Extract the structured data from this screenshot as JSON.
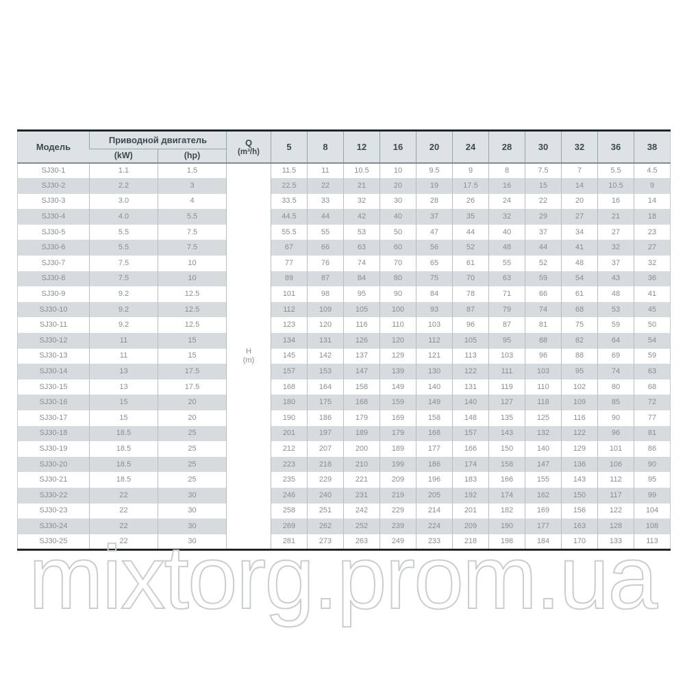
{
  "table": {
    "header": {
      "model": "Модель",
      "drive_motor": "Приводной двигатель",
      "kw": "(kW)",
      "hp": "(hp)",
      "q_line1": "Q",
      "q_line2": "(m³/h)",
      "flow_columns": [
        "5",
        "8",
        "12",
        "16",
        "20",
        "24",
        "28",
        "30",
        "32",
        "36",
        "38"
      ]
    },
    "h_column": {
      "line1": "H",
      "line2": "(m)"
    },
    "rows": [
      {
        "model": "SJ30-1",
        "kw": "1.1",
        "hp": "1.5",
        "head": [
          "11.5",
          "11",
          "10.5",
          "10",
          "9.5",
          "9",
          "8",
          "7.5",
          "7",
          "5.5",
          "4.5"
        ]
      },
      {
        "model": "SJ30-2",
        "kw": "2.2",
        "hp": "3",
        "head": [
          "22.5",
          "22",
          "21",
          "20",
          "19",
          "17.5",
          "16",
          "15",
          "14",
          "10.5",
          "9"
        ]
      },
      {
        "model": "SJ30-3",
        "kw": "3.0",
        "hp": "4",
        "head": [
          "33.5",
          "33",
          "32",
          "30",
          "28",
          "26",
          "24",
          "22",
          "20",
          "16",
          "14"
        ]
      },
      {
        "model": "SJ30-4",
        "kw": "4.0",
        "hp": "5.5",
        "head": [
          "44.5",
          "44",
          "42",
          "40",
          "37",
          "35",
          "32",
          "29",
          "27",
          "21",
          "18"
        ]
      },
      {
        "model": "SJ30-5",
        "kw": "5.5",
        "hp": "7.5",
        "head": [
          "55.5",
          "55",
          "53",
          "50",
          "47",
          "44",
          "40",
          "37",
          "34",
          "27",
          "23"
        ]
      },
      {
        "model": "SJ30-6",
        "kw": "5.5",
        "hp": "7.5",
        "head": [
          "67",
          "66",
          "63",
          "60",
          "56",
          "52",
          "48",
          "44",
          "41",
          "32",
          "27"
        ]
      },
      {
        "model": "SJ30-7",
        "kw": "7.5",
        "hp": "10",
        "head": [
          "77",
          "76",
          "74",
          "70",
          "65",
          "61",
          "55",
          "52",
          "48",
          "37",
          "32"
        ]
      },
      {
        "model": "SJ30-8",
        "kw": "7.5",
        "hp": "10",
        "head": [
          "89",
          "87",
          "84",
          "80",
          "75",
          "70",
          "63",
          "59",
          "54",
          "43",
          "36"
        ]
      },
      {
        "model": "SJ30-9",
        "kw": "9.2",
        "hp": "12.5",
        "head": [
          "101",
          "98",
          "95",
          "90",
          "84",
          "78",
          "71",
          "66",
          "61",
          "48",
          "41"
        ]
      },
      {
        "model": "SJ30-10",
        "kw": "9.2",
        "hp": "12.5",
        "head": [
          "112",
          "109",
          "105",
          "100",
          "93",
          "87",
          "79",
          "74",
          "68",
          "53",
          "45"
        ]
      },
      {
        "model": "SJ30-11",
        "kw": "9.2",
        "hp": "12.5",
        "head": [
          "123",
          "120",
          "116",
          "110",
          "103",
          "96",
          "87",
          "81",
          "75",
          "59",
          "50"
        ]
      },
      {
        "model": "SJ30-12",
        "kw": "11",
        "hp": "15",
        "head": [
          "134",
          "131",
          "126",
          "120",
          "112",
          "105",
          "95",
          "88",
          "82",
          "64",
          "54"
        ]
      },
      {
        "model": "SJ30-13",
        "kw": "11",
        "hp": "15",
        "head": [
          "145",
          "142",
          "137",
          "129",
          "121",
          "113",
          "103",
          "96",
          "88",
          "69",
          "59"
        ]
      },
      {
        "model": "SJ30-14",
        "kw": "13",
        "hp": "17.5",
        "head": [
          "157",
          "153",
          "147",
          "139",
          "130",
          "122",
          "111",
          "103",
          "95",
          "74",
          "63"
        ]
      },
      {
        "model": "SJ30-15",
        "kw": "13",
        "hp": "17.5",
        "head": [
          "168",
          "164",
          "158",
          "149",
          "140",
          "131",
          "119",
          "110",
          "102",
          "80",
          "68"
        ]
      },
      {
        "model": "SJ30-16",
        "kw": "15",
        "hp": "20",
        "head": [
          "180",
          "175",
          "168",
          "159",
          "149",
          "140",
          "127",
          "118",
          "109",
          "85",
          "72"
        ]
      },
      {
        "model": "SJ30-17",
        "kw": "15",
        "hp": "20",
        "head": [
          "190",
          "186",
          "179",
          "169",
          "158",
          "148",
          "135",
          "125",
          "116",
          "90",
          "77"
        ]
      },
      {
        "model": "SJ30-18",
        "kw": "18.5",
        "hp": "25",
        "head": [
          "201",
          "197",
          "189",
          "179",
          "168",
          "157",
          "143",
          "132",
          "122",
          "96",
          "81"
        ]
      },
      {
        "model": "SJ30-19",
        "kw": "18.5",
        "hp": "25",
        "head": [
          "212",
          "207",
          "200",
          "189",
          "177",
          "166",
          "150",
          "140",
          "129",
          "101",
          "86"
        ]
      },
      {
        "model": "SJ30-20",
        "kw": "18.5",
        "hp": "25",
        "head": [
          "223",
          "218",
          "210",
          "199",
          "186",
          "174",
          "158",
          "147",
          "136",
          "106",
          "90"
        ]
      },
      {
        "model": "SJ30-21",
        "kw": "18.5",
        "hp": "25",
        "head": [
          "235",
          "229",
          "221",
          "209",
          "196",
          "183",
          "166",
          "155",
          "143",
          "112",
          "95"
        ]
      },
      {
        "model": "SJ30-22",
        "kw": "22",
        "hp": "30",
        "head": [
          "246",
          "240",
          "231",
          "219",
          "205",
          "192",
          "174",
          "162",
          "150",
          "117",
          "99"
        ]
      },
      {
        "model": "SJ30-23",
        "kw": "22",
        "hp": "30",
        "head": [
          "258",
          "251",
          "242",
          "229",
          "214",
          "201",
          "182",
          "169",
          "156",
          "122",
          "104"
        ]
      },
      {
        "model": "SJ30-24",
        "kw": "22",
        "hp": "30",
        "head": [
          "269",
          "262",
          "252",
          "239",
          "224",
          "209",
          "190",
          "177",
          "163",
          "128",
          "108"
        ]
      },
      {
        "model": "SJ30-25",
        "kw": "22",
        "hp": "30",
        "head": [
          "281",
          "273",
          "263",
          "249",
          "233",
          "218",
          "198",
          "184",
          "170",
          "133",
          "113"
        ]
      }
    ]
  },
  "watermark": {
    "text": "mixtorg.prom.ua"
  },
  "colors": {
    "header_bg": "#dde2e5",
    "stripe_bg": "#d6dbde",
    "header_text": "#3f484e",
    "body_text": "#878d92",
    "heavy_border": "#1e262a",
    "watermark_stroke": "#c9cdcf"
  }
}
